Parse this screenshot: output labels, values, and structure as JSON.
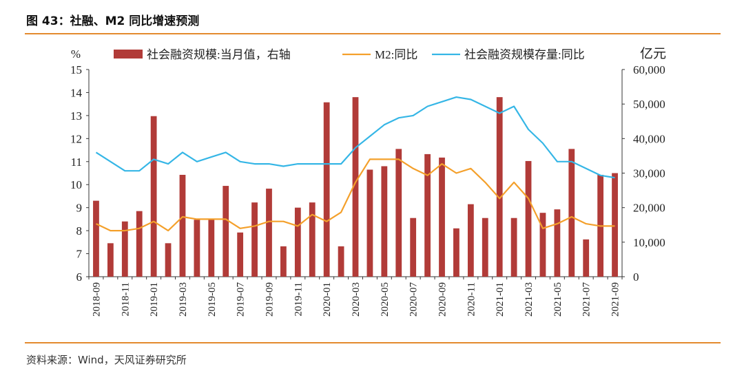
{
  "header": {
    "title": "图 43：社融、M2 同比增速预测"
  },
  "footer": {
    "source": "资料来源：Wind，天风证券研究所"
  },
  "colors": {
    "bars": "#b13b38",
    "m2": "#f4a02b",
    "stock": "#35b6e6",
    "rule": "#e38a2d"
  },
  "chart_data": {
    "type": "bar+line",
    "left_axis": {
      "unit": "%",
      "ylim": [
        6,
        15
      ],
      "ticks": [
        6,
        7,
        8,
        9,
        10,
        11,
        12,
        13,
        14,
        15
      ]
    },
    "right_axis": {
      "unit": "亿元",
      "ylim": [
        0,
        60000
      ],
      "ticks": [
        "0",
        "10,000",
        "20,000",
        "30,000",
        "40,000",
        "50,000",
        "60,000"
      ],
      "tick_values": [
        0,
        10000,
        20000,
        30000,
        40000,
        50000,
        60000
      ]
    },
    "x_tick_labels": [
      "2018-09",
      "2018-11",
      "2019-01",
      "2019-03",
      "2019-05",
      "2019-07",
      "2019-09",
      "2019-11",
      "2020-01",
      "2020-03",
      "2020-05",
      "2020-07",
      "2020-09",
      "2020-11",
      "2021-01",
      "2021-03",
      "2021-05",
      "2021-07",
      "2021-09"
    ],
    "categories": [
      "2018-09",
      "2018-10",
      "2018-11",
      "2018-12",
      "2019-01",
      "2019-02",
      "2019-03",
      "2019-04",
      "2019-05",
      "2019-06",
      "2019-07",
      "2019-08",
      "2019-09",
      "2019-10",
      "2019-11",
      "2019-12",
      "2020-01",
      "2020-02",
      "2020-03",
      "2020-04",
      "2020-05",
      "2020-06",
      "2020-07",
      "2020-08",
      "2020-09",
      "2020-10",
      "2020-11",
      "2020-12",
      "2021-01",
      "2021-02",
      "2021-03",
      "2021-04",
      "2021-05",
      "2021-06",
      "2021-07",
      "2021-08",
      "2021-09"
    ],
    "series": [
      {
        "name": "社会融资规模:当月值，右轴",
        "kind": "bar",
        "axis": "right",
        "values": [
          22000,
          9700,
          16000,
          19000,
          46500,
          9700,
          29500,
          16500,
          16500,
          26300,
          12800,
          21500,
          25500,
          8800,
          20000,
          21500,
          50500,
          8800,
          52000,
          31000,
          32000,
          37000,
          17000,
          35500,
          34500,
          14000,
          21000,
          17000,
          52000,
          17000,
          33500,
          18500,
          19500,
          37000,
          10800,
          29500,
          30000
        ]
      },
      {
        "name": "M2:同比",
        "kind": "line",
        "axis": "left",
        "values": [
          8.3,
          8.0,
          8.0,
          8.1,
          8.4,
          8.0,
          8.6,
          8.5,
          8.5,
          8.5,
          8.1,
          8.2,
          8.4,
          8.4,
          8.2,
          8.7,
          8.4,
          8.8,
          10.1,
          11.1,
          11.1,
          11.1,
          10.7,
          10.4,
          10.9,
          10.5,
          10.7,
          10.1,
          9.4,
          10.1,
          9.4,
          8.1,
          8.3,
          8.6,
          8.3,
          8.2,
          8.2
        ]
      },
      {
        "name": "社会融资规模存量:同比",
        "kind": "line",
        "axis": "left",
        "values": [
          11.4,
          11.0,
          10.6,
          10.6,
          11.1,
          10.9,
          11.4,
          11.0,
          11.2,
          11.4,
          11.0,
          10.9,
          10.9,
          10.8,
          10.9,
          10.9,
          10.9,
          10.9,
          11.6,
          12.1,
          12.6,
          12.9,
          13.0,
          13.4,
          13.6,
          13.8,
          13.7,
          13.4,
          13.1,
          13.4,
          12.4,
          11.8,
          11.0,
          11.0,
          10.7,
          10.4,
          10.3
        ]
      }
    ]
  }
}
